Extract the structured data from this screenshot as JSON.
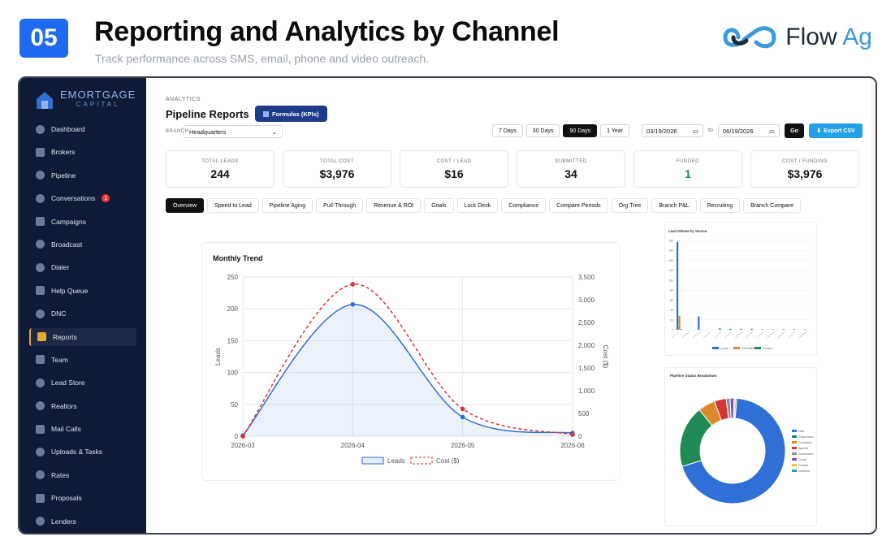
{
  "slide": {
    "number": "05",
    "title": "Reporting and Analytics by Channel",
    "subtitle": "Track performance across SMS, email, phone and video outreach.",
    "brand_main": "Flow ",
    "brand_accent": "Ag"
  },
  "sidebar": {
    "logo_main": "EMORTGAGE",
    "logo_sub": "CAPITAL",
    "items": [
      {
        "label": "Dashboard"
      },
      {
        "label": "Brokers"
      },
      {
        "label": "Pipeline"
      },
      {
        "label": "Conversations",
        "badge": "1"
      },
      {
        "label": "Campaigns"
      },
      {
        "label": "Broadcast"
      },
      {
        "label": "Dialer"
      },
      {
        "label": "Help Queue"
      },
      {
        "label": "DNC"
      },
      {
        "label": "Reports",
        "active": true
      },
      {
        "label": "Team"
      },
      {
        "label": "Lead Store"
      },
      {
        "label": "Realtors"
      },
      {
        "label": "Mail Calls"
      },
      {
        "label": "Uploads & Tasks"
      },
      {
        "label": "Rates"
      },
      {
        "label": "Proposals"
      },
      {
        "label": "Lenders"
      }
    ]
  },
  "header": {
    "breadcrumb": "ANALYTICS",
    "title": "Pipeline Reports",
    "kpi_button": "Formulas (KPIs)",
    "branch_label": "BRANCH",
    "branch_value": "Headquarters",
    "ranges": [
      "7 Days",
      "30 Days",
      "90 Days",
      "1 Year"
    ],
    "active_range": "90 Days",
    "date_from": "03/19/2026",
    "to_label": "to",
    "date_to": "06/19/2026",
    "go": "Go",
    "export": "Export CSV"
  },
  "kpis": [
    {
      "label": "TOTAL LEADS",
      "value": "244"
    },
    {
      "label": "TOTAL COST",
      "value": "$3,976"
    },
    {
      "label": "COST / LEAD",
      "value": "$16"
    },
    {
      "label": "SUBMITTED",
      "value": "34"
    },
    {
      "label": "FUNDED",
      "value": "1",
      "accent": "#168a4a"
    },
    {
      "label": "COST / FUNDING",
      "value": "$3,976"
    }
  ],
  "tabs": [
    "Overview",
    "Speed to Lead",
    "Pipeline Aging",
    "Pull-Through",
    "Revenue & ROI",
    "Goals",
    "Lock Desk",
    "Compliance",
    "Compare Periods",
    "Org Tree",
    "Branch P&L",
    "Recruiting",
    "Branch Compare"
  ],
  "active_tab": "Overview",
  "chart_data": [
    {
      "type": "line",
      "title": "Monthly Trend",
      "x": [
        "2026-03",
        "2026-04",
        "2026-05",
        "2026-06"
      ],
      "series": [
        {
          "name": "Leads",
          "axis": "left",
          "values": [
            1,
            207,
            30,
            5
          ],
          "color": "#2f6fd6",
          "fill": true
        },
        {
          "name": "Cost ($)",
          "axis": "right",
          "values": [
            0,
            3340,
            600,
            36
          ],
          "color": "#d63434",
          "dashed": true
        }
      ],
      "ylabel": "Leads",
      "y2label": "Cost ($)",
      "ylim": [
        0,
        250
      ],
      "y2lim": [
        0,
        3500
      ],
      "yticks": [
        "250",
        "200",
        "150",
        "100",
        "50",
        "0"
      ],
      "y2ticks": [
        "3,500",
        "3,000",
        "2,500",
        "2,000",
        "1,500",
        "1,000",
        "500",
        "0"
      ],
      "legend": "bottom"
    },
    {
      "type": "bar",
      "title": "Lead Volume by Source",
      "legend_items": [
        "Leads",
        "Submitted",
        "Funded"
      ],
      "yticks": [
        "180",
        "160",
        "140",
        "120",
        "100",
        "80",
        "60",
        "40",
        "20",
        "0"
      ],
      "series": [
        {
          "name": "Leads",
          "color": "#2f6fd6",
          "values": [
            177,
            0,
            27,
            0,
            3,
            2,
            2,
            2,
            1,
            1,
            1,
            1,
            1
          ]
        },
        {
          "name": "Submitted",
          "color": "#d98a2b",
          "values": [
            28,
            0,
            0,
            0,
            0,
            0,
            0,
            0,
            0,
            0,
            0,
            0,
            0
          ]
        },
        {
          "name": "Funded",
          "color": "#1f8a55",
          "values": [
            1,
            0,
            0,
            0,
            0,
            0,
            0,
            0,
            0,
            0,
            0,
            0,
            0
          ]
        }
      ]
    },
    {
      "type": "pie",
      "title": "Pipeline Status Breakdown",
      "slices": [
        {
          "label": "New",
          "value": 171,
          "color": "#2f6fd6"
        },
        {
          "label": "Responsive",
          "value": 47,
          "color": "#1f8a55"
        },
        {
          "label": "Contacted",
          "value": 13,
          "color": "#d98a2b"
        },
        {
          "label": "Applied",
          "value": 9,
          "color": "#d63434"
        },
        {
          "label": "Submission",
          "value": 3,
          "color": "#8b8f99"
        },
        {
          "label": "Credit",
          "value": 3,
          "color": "#7a4fd6"
        },
        {
          "label": "Funded",
          "value": 1,
          "color": "#e0c341"
        },
        {
          "label": "Declined",
          "value": 1,
          "color": "#2aa198"
        }
      ]
    }
  ]
}
